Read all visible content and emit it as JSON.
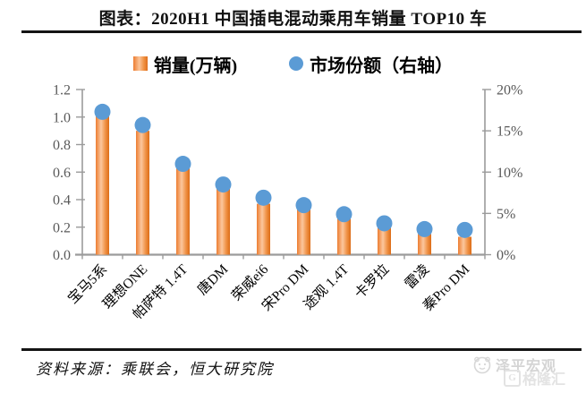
{
  "header": {
    "title": "图表：2020H1 中国插电混动乘用车销量 TOP10 车"
  },
  "legend": {
    "items": [
      {
        "label": "销量(万辆)",
        "marker": "square",
        "color": "#ED7D31"
      },
      {
        "label": "市场份额（右轴）",
        "marker": "circle",
        "color": "#5B9BD5"
      }
    ]
  },
  "chart_data": {
    "type": "bar",
    "title": "2020H1 中国插电混动乘用车销量 TOP10",
    "categories": [
      "宝马5系",
      "理想ONE",
      "帕萨特 1.4T",
      "唐DM",
      "荣威ei6",
      "宋Pro DM",
      "途观 1.4T",
      "卡罗拉",
      "雷凌",
      "秦Pro DM"
    ],
    "series": [
      {
        "name": "销量(万辆)",
        "type": "bar",
        "axis": "left",
        "color": "#ED7D31",
        "values": [
          1.06,
          0.9,
          0.69,
          0.48,
          0.37,
          0.33,
          0.27,
          0.2,
          0.15,
          0.13
        ]
      },
      {
        "name": "市场份额（右轴）",
        "type": "scatter",
        "axis": "right",
        "color": "#5B9BD5",
        "values": [
          17.3,
          15.7,
          11.0,
          8.5,
          6.9,
          6.0,
          4.9,
          3.8,
          3.1,
          3.0
        ]
      }
    ],
    "xlabel": "",
    "ylabel_left": "万辆",
    "ylabel_right": "%",
    "y_left": {
      "min": 0,
      "max": 1.2,
      "step": 0.2,
      "ticks": [
        "0.0",
        "0.2",
        "0.4",
        "0.6",
        "0.8",
        "1.0",
        "1.2"
      ]
    },
    "y_right": {
      "min": 0,
      "max": 20,
      "step": 5,
      "ticks": [
        "0%",
        "5%",
        "10%",
        "15%",
        "20%"
      ]
    },
    "grid": false,
    "legend_position": "top",
    "axis_color": "#9b9b9b",
    "tick_label_color": "#595959",
    "category_label_color": "#000000",
    "category_label_rotation_deg": -45
  },
  "footer": {
    "source": "资料来源：乘联会，恒大研究院"
  },
  "watermark": {
    "brand": "泽平宏观",
    "overlay_letter": "G",
    "overlay": "格隆汇"
  }
}
